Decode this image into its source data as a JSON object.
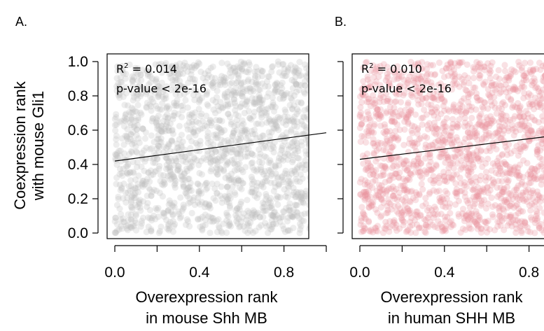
{
  "figure": {
    "panel_labels": [
      "A.",
      "B."
    ],
    "shared_ylabel_line1": "Coexpression rank",
    "shared_ylabel_line2": "with mouse Gli1"
  },
  "chart_data": [
    {
      "type": "scatter",
      "panel": "A.",
      "xlabel_line1": "Overexpression rank",
      "xlabel_line2": "in mouse Shh MB",
      "xlim": [
        0,
        1
      ],
      "ylim": [
        0,
        1
      ],
      "xticks": [
        0.0,
        0.4,
        0.8
      ],
      "xtick_labels": [
        "0.0",
        "0.4",
        "0.8"
      ],
      "yticks": [
        0.0,
        0.2,
        0.4,
        0.6,
        0.8,
        1.0
      ],
      "ytick_labels": [
        "0.0",
        "0.2",
        "0.4",
        "0.6",
        "0.8",
        "1.0"
      ],
      "point_color": "#bdbdbd",
      "point_opacity": 0.28,
      "point_count_drawn": 1800,
      "distribution": "uniform over [0,1] x [0,1] (dense cloud)",
      "regression_line": {
        "x": [
          0.0,
          1.0
        ],
        "y": [
          0.42,
          0.585
        ]
      },
      "annotation_r2_prefix": "R",
      "annotation_r2_sup": "2",
      "annotation_r2_value": " = 0.014",
      "annotation_pvalue": "p-value < 2e-16",
      "grid": false
    },
    {
      "type": "scatter",
      "panel": "B.",
      "xlabel_line1": "Overexpression rank",
      "xlabel_line2": "in human SHH MB",
      "xlim": [
        0,
        1
      ],
      "ylim": [
        0,
        1
      ],
      "xticks": [
        0.0,
        0.4,
        0.8
      ],
      "xtick_labels": [
        "0.0",
        "0.4",
        "0.8"
      ],
      "yticks": [
        0.0,
        0.2,
        0.4,
        0.6,
        0.8,
        1.0
      ],
      "ytick_labels": [],
      "point_color": "#e8939f",
      "point_opacity": 0.28,
      "point_count_drawn": 1800,
      "distribution": "uniform over [0,1] x [0,1] (dense cloud)",
      "regression_line": {
        "x": [
          0.0,
          1.0
        ],
        "y": [
          0.43,
          0.58
        ]
      },
      "annotation_r2_prefix": "R",
      "annotation_r2_sup": "2",
      "annotation_r2_value": " = 0.010",
      "annotation_pvalue": "p-value < 2e-16",
      "grid": false
    }
  ]
}
